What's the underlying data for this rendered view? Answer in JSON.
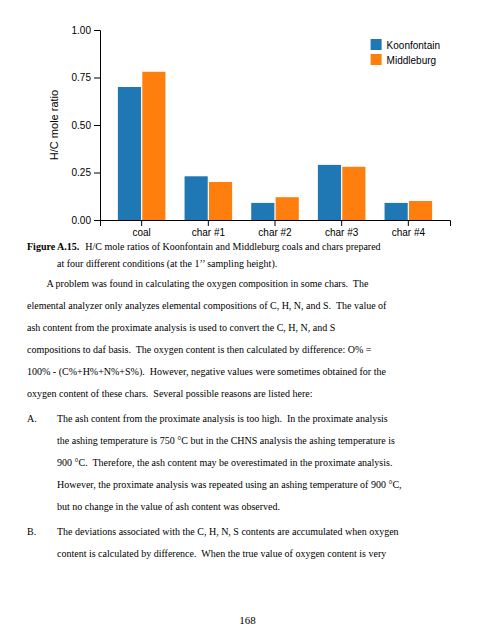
{
  "chart_data": {
    "type": "bar",
    "categories": [
      "coal",
      "char #1",
      "char #2",
      "char #3",
      "char #4"
    ],
    "series": [
      {
        "name": "Koonfontain",
        "values": [
          0.7,
          0.23,
          0.09,
          0.29,
          0.09
        ]
      },
      {
        "name": "Middleburg",
        "values": [
          0.78,
          0.2,
          0.12,
          0.28,
          0.1
        ]
      }
    ],
    "ylabel": "H/C mole ratio",
    "ylim": [
      0,
      1.0
    ],
    "yticks": [
      {
        "value": 0,
        "label": "0.00"
      },
      0.25,
      {
        "value": 0.5,
        "label": "0.50"
      },
      0.75,
      {
        "value": 1.0,
        "label": "1.00"
      }
    ],
    "legend": "upper right",
    "grid": false
  },
  "page": {
    "caption_label": "Figure A.15.",
    "caption_lines": [
      "H/C mole ratios of Koonfontain and Middleburg coals and chars prepared",
      "at four different conditions (at the 1’’ sampling height)."
    ],
    "body": [
      "        A problem was found in calculating the oxygen composition in some chars.  The",
      "elemental analyzer only analyzes elemental compositions of C, H, N, and S.  The value of",
      "ash content from the proximate analysis is used to convert the C, H, N, and S",
      "compositions to daf basis.  The oxygen content is then calculated by difference: O% =",
      "100% - (C%+H%+N%+S%).  However, negative values were sometimes obtained for the",
      "oxygen content of these chars.  Several possible reasons are listed here:"
    ],
    "list": [
      {
        "label": "A.",
        "lines": [
          "The ash content from the proximate analysis is too high.  In the proximate analysis",
          "the ashing temperature is 750 °C but in the CHNS analysis the ashing temperature is",
          "900 °C.  Therefore, the ash content may be overestimated in the proximate analysis.",
          "However, the proximate analysis was repeated using an ashing temperature of 900 °C,",
          "but no change in the value of ash content was observed."
        ]
      },
      {
        "label": "B.",
        "lines": [
          "The deviations associated with the C, H, N, S contents are accumulated when oxygen",
          "content is calculated by difference.  When the true value of oxygen content is very"
        ]
      }
    ],
    "page_number": "168"
  }
}
